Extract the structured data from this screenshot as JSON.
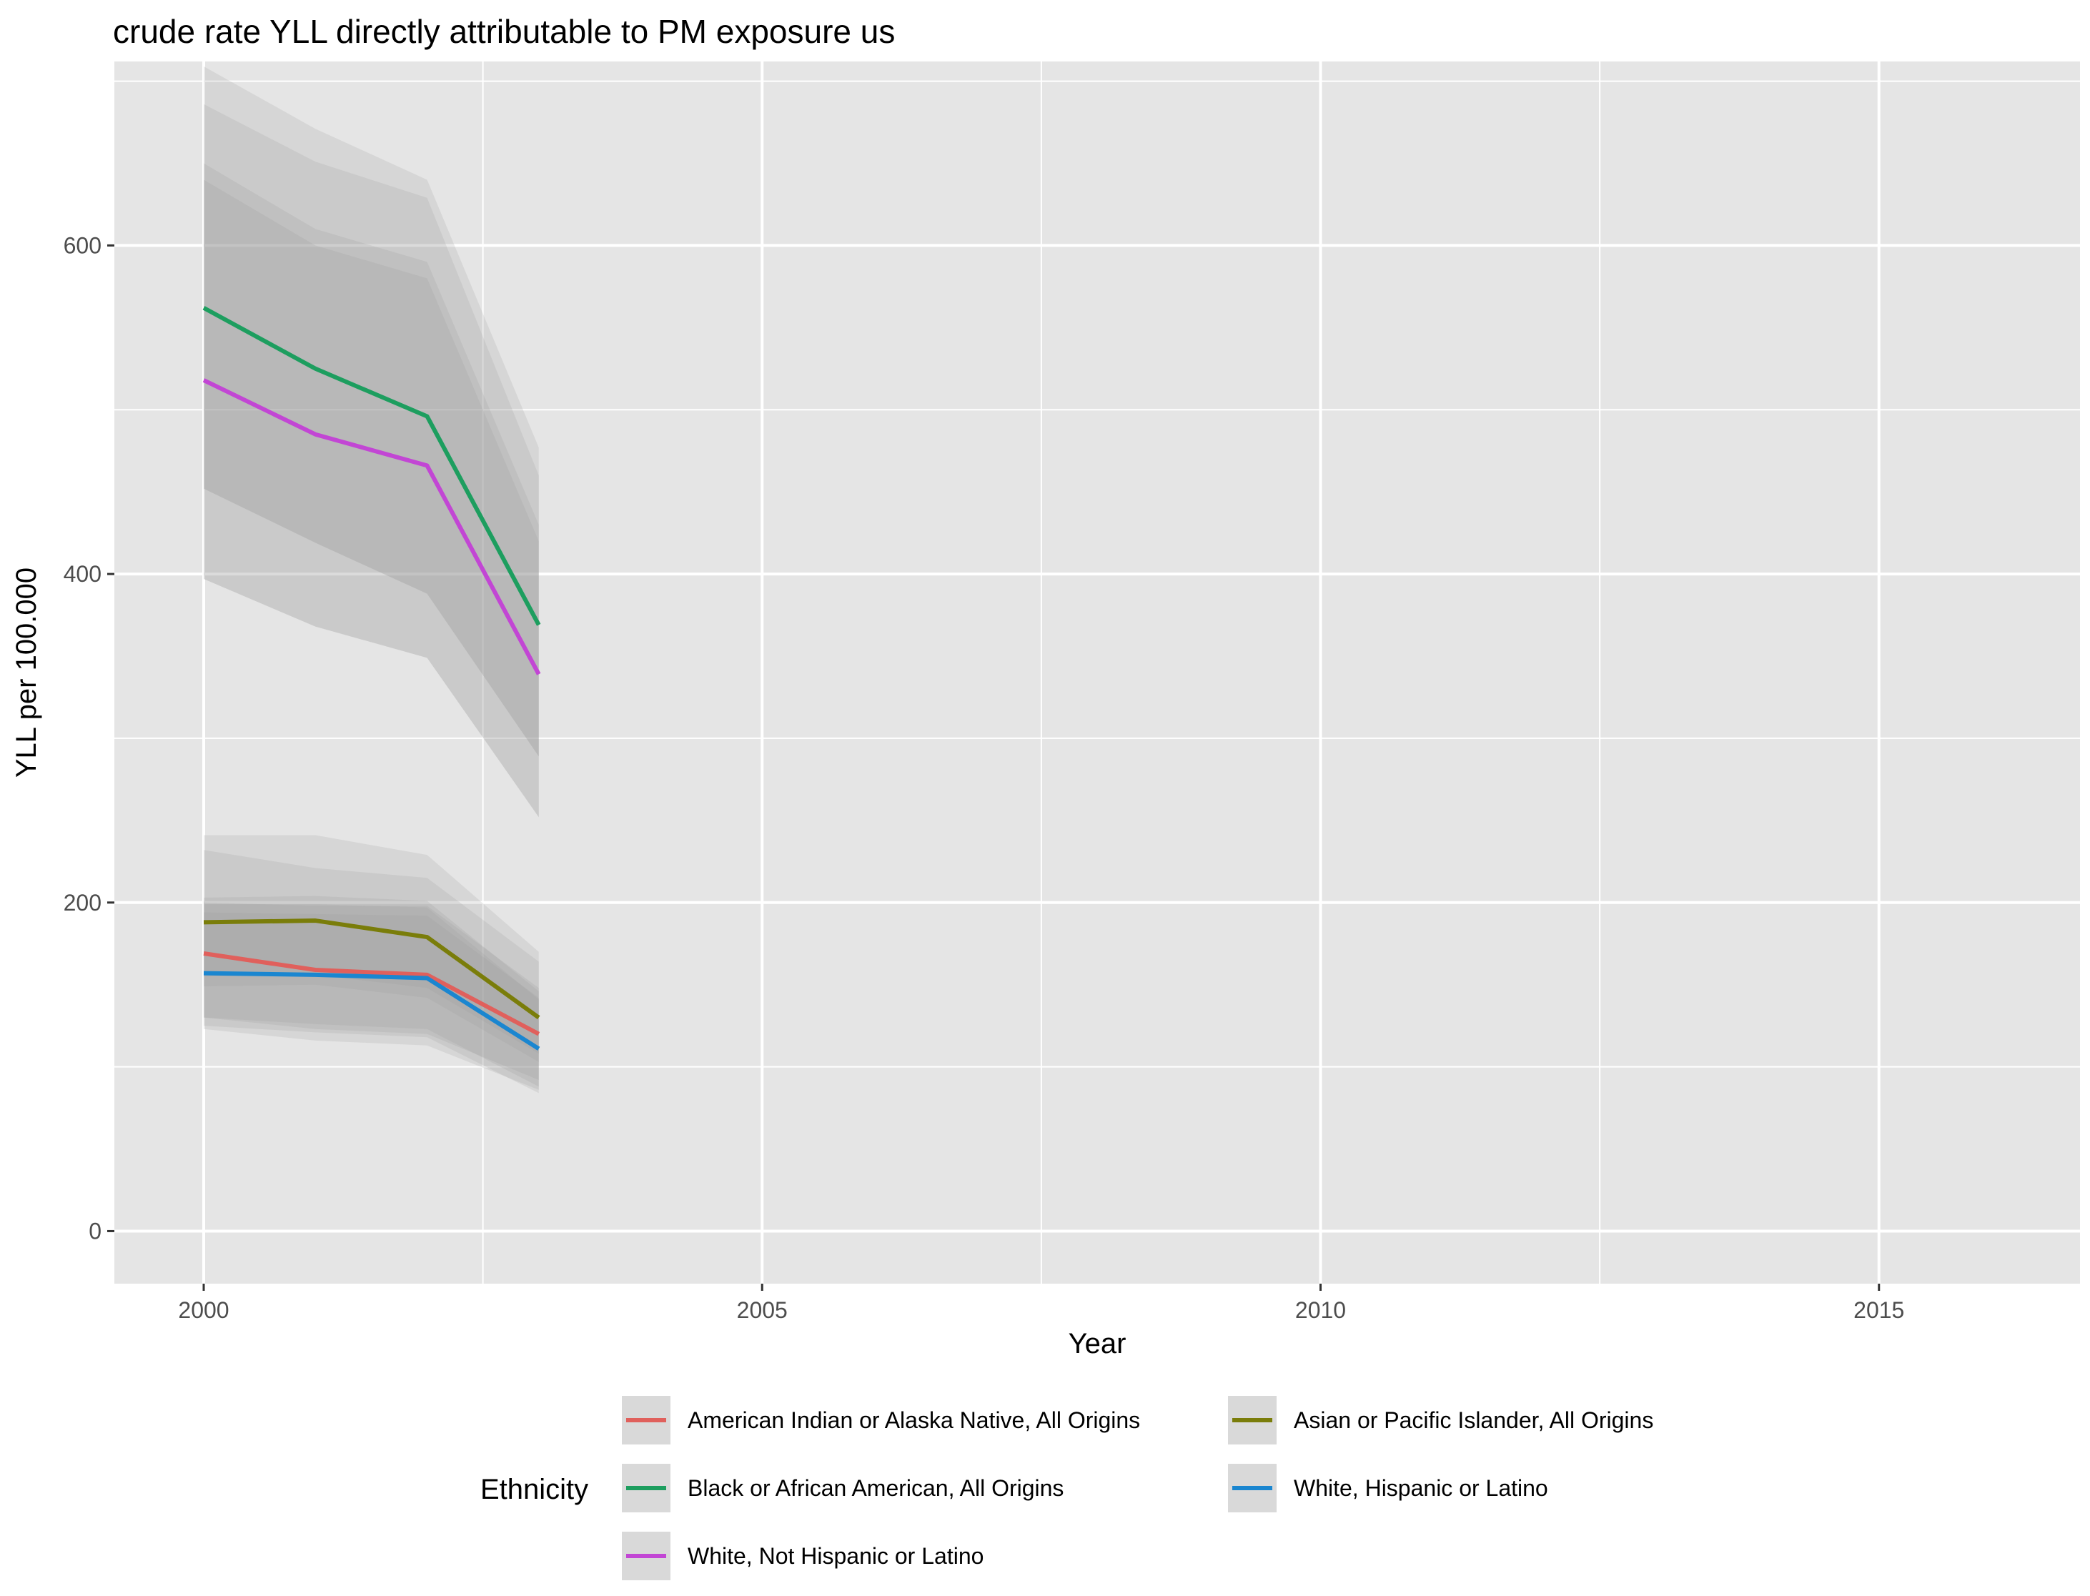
{
  "chart_data": {
    "type": "line",
    "title": "crude rate YLL directly attributable to PM exposure us",
    "xlabel": "Year",
    "ylabel": "YLL per 100.000",
    "xlim": [
      1999.2,
      2016.8
    ],
    "ylim": [
      -32,
      712
    ],
    "x_ticks": [
      2000,
      2005,
      2010,
      2015
    ],
    "y_ticks": [
      0,
      200,
      400,
      600
    ],
    "grid": true,
    "legend": {
      "title": "Ethnicity",
      "position": "bottom"
    },
    "x": [
      2000,
      2001,
      2002,
      2003
    ],
    "series": [
      {
        "name": "American Indian or Alaska Native, All Origins",
        "color": "#E0605C",
        "values": [
          169,
          159,
          156,
          120
        ],
        "lower_outer": [
          123,
          116,
          113,
          86
        ],
        "upper_outer": [
          203,
          204,
          201,
          146
        ],
        "lower_inner": [
          130,
          123,
          120,
          92
        ],
        "upper_inner": [
          199,
          199,
          197,
          141
        ]
      },
      {
        "name": "Asian or Pacific Islander, All Origins",
        "color": "#7A7D0A",
        "values": [
          188,
          189,
          179,
          130
        ],
        "lower_outer": [
          149,
          150,
          142,
          103
        ],
        "upper_outer": [
          241,
          241,
          229,
          170
        ],
        "lower_inner": [
          155,
          156,
          148,
          108
        ],
        "upper_inner": [
          232,
          221,
          215,
          164
        ]
      },
      {
        "name": "Black or African American, All Origins",
        "color": "#1D9E5F",
        "values": [
          562,
          525,
          496,
          369
        ],
        "lower_outer": [
          452,
          419,
          388,
          289
        ],
        "upper_outer": [
          709,
          671,
          640,
          477
        ],
        "lower_inner": [
          452,
          419,
          388,
          289
        ],
        "upper_inner": [
          686,
          651,
          629,
          460
        ]
      },
      {
        "name": "White, Hispanic or Latino",
        "color": "#1A86D0",
        "values": [
          157,
          156,
          154,
          111
        ],
        "lower_outer": [
          125,
          121,
          118,
          84
        ],
        "upper_outer": [
          200,
          198,
          198,
          148
        ],
        "lower_inner": [
          130,
          126,
          123,
          88
        ],
        "upper_inner": [
          194,
          193,
          192,
          142
        ]
      },
      {
        "name": "White, Not Hispanic or Latino",
        "color": "#C246D4",
        "values": [
          518,
          485,
          466,
          339
        ],
        "lower_outer": [
          397,
          368,
          349,
          252
        ],
        "upper_outer": [
          650,
          610,
          590,
          430
        ],
        "lower_inner": [
          397,
          368,
          349,
          252
        ],
        "upper_inner": [
          640,
          600,
          580,
          420
        ]
      }
    ]
  },
  "legend_layout": [
    [
      "American Indian or Alaska Native, All Origins",
      "Asian or Pacific Islander, All Origins"
    ],
    [
      "Black or African American, All Origins",
      "White, Hispanic or Latino"
    ],
    [
      "White, Not Hispanic or Latino"
    ]
  ],
  "colors": {
    "panel": "#E5E5E5",
    "grid_major": "#FFFFFF",
    "ribbon": "#999999"
  }
}
